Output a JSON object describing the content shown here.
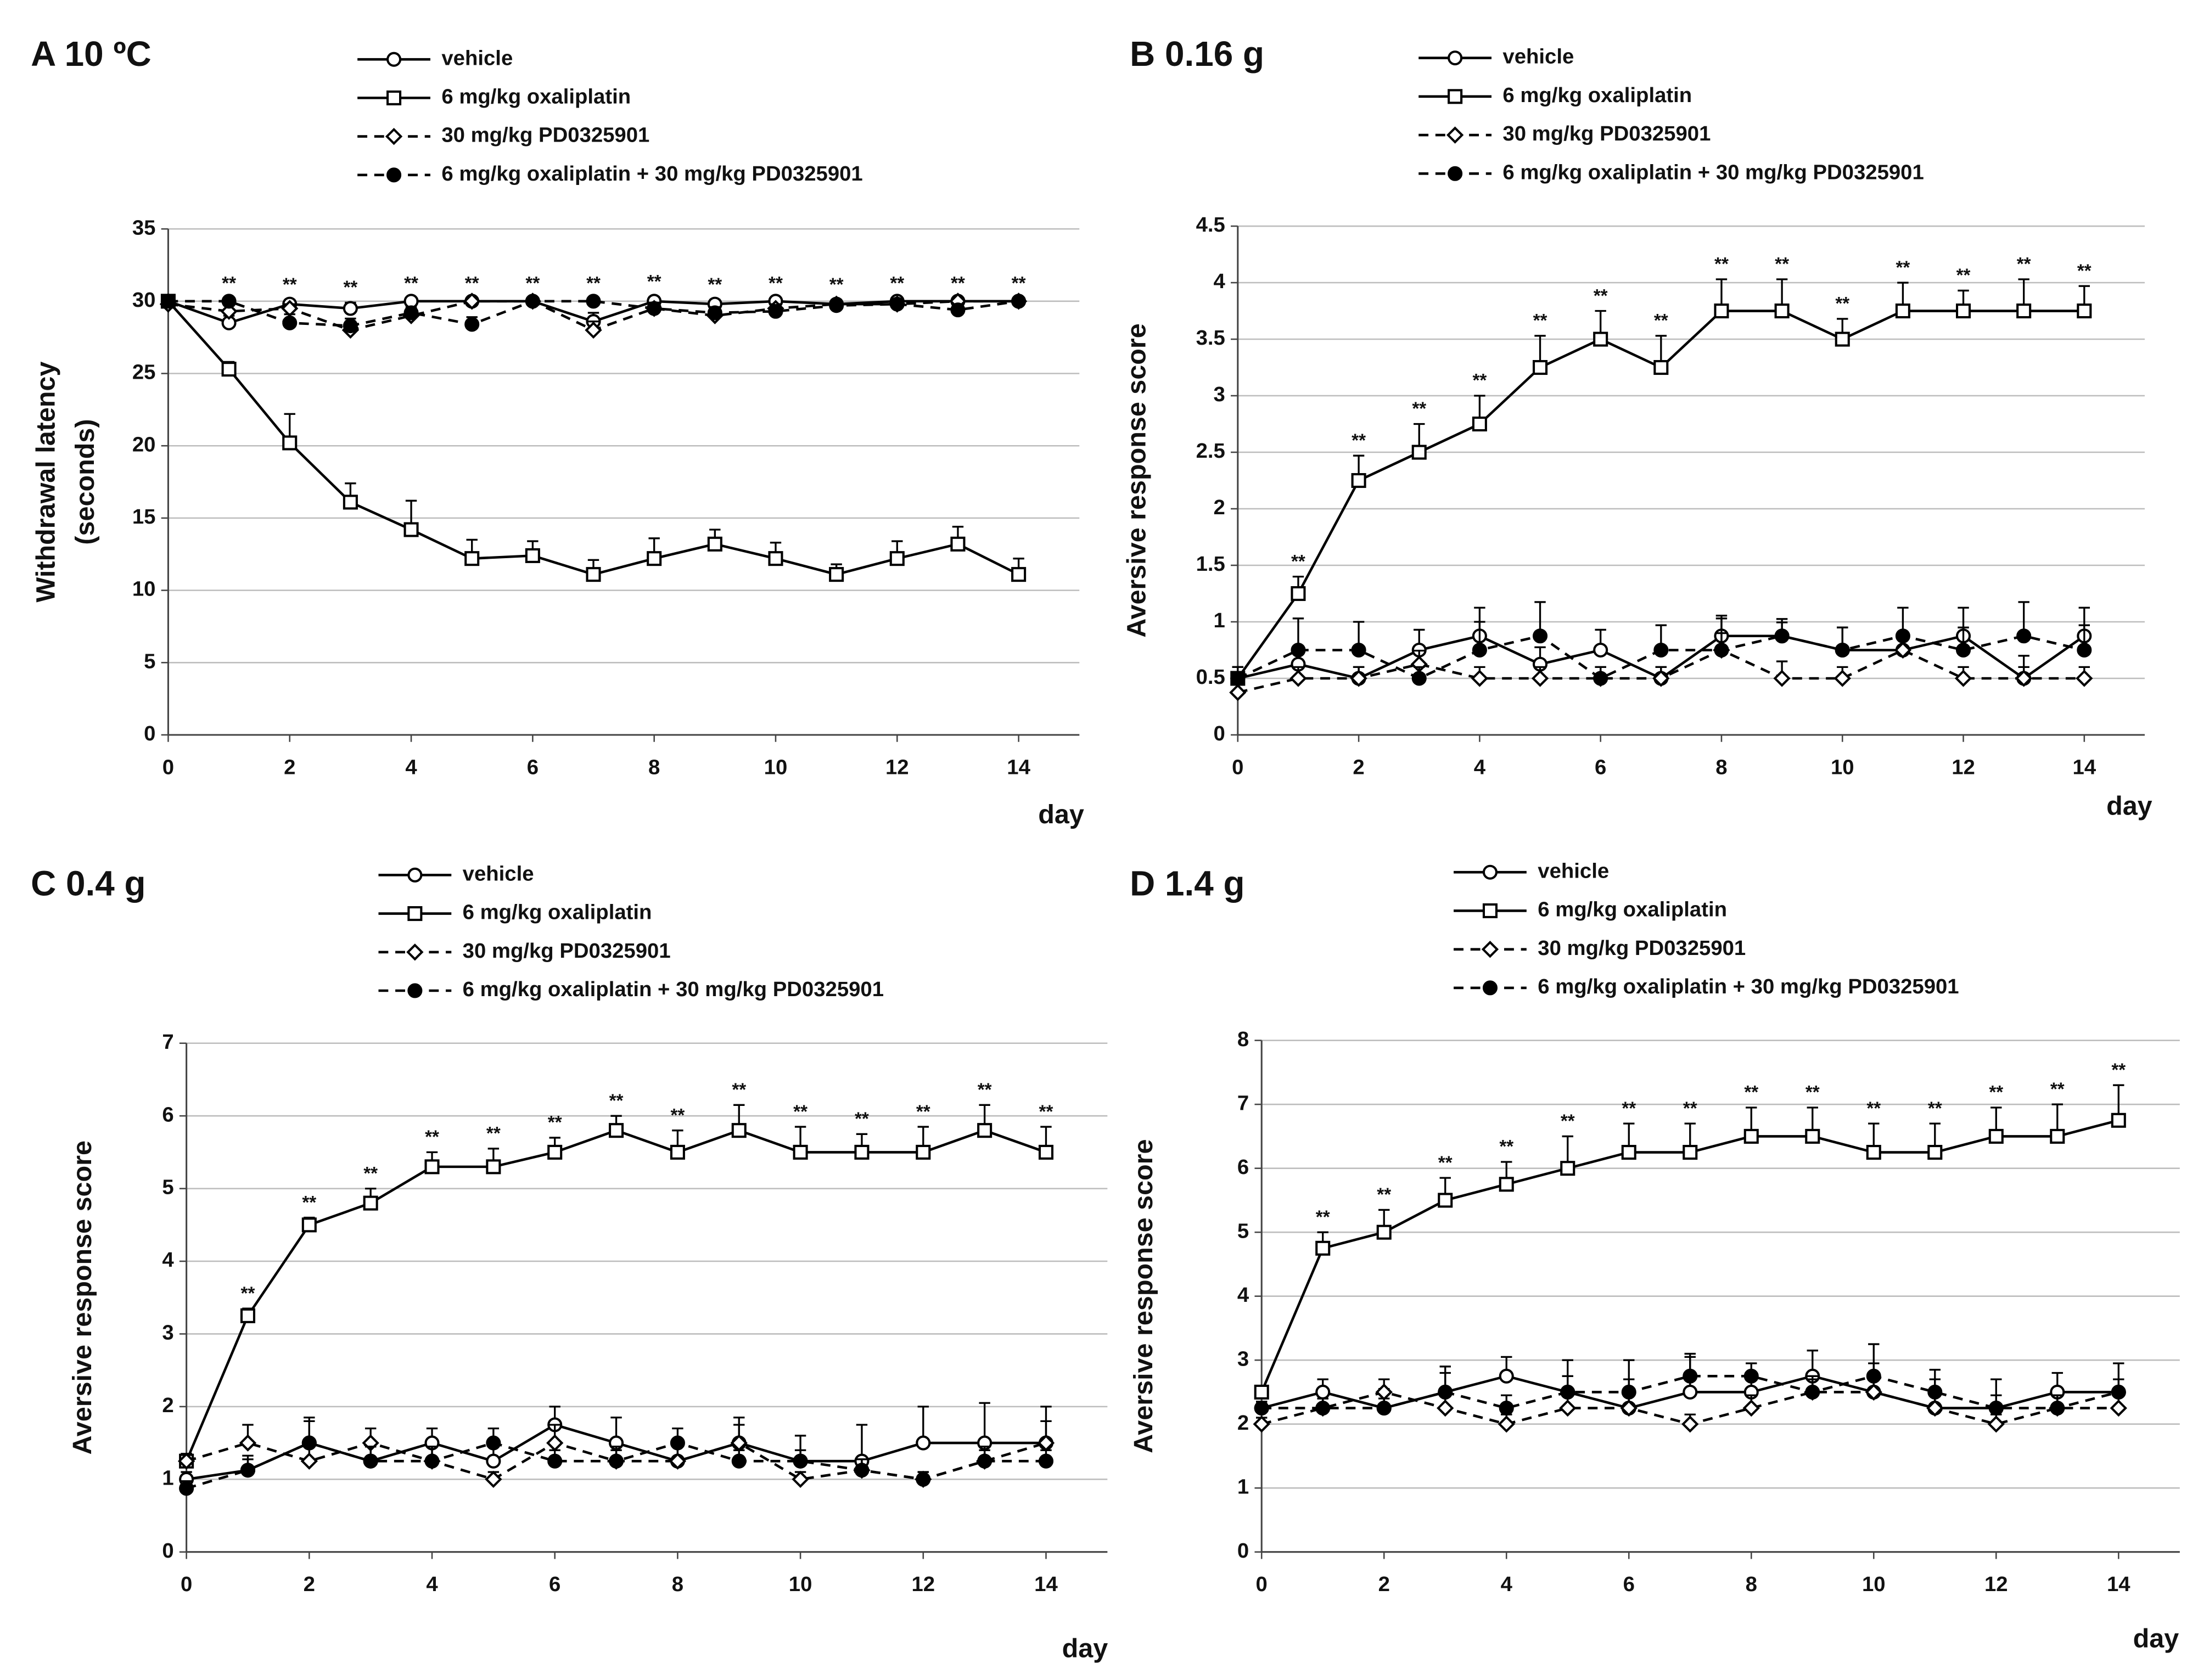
{
  "chart_data": [
    {
      "type": "line",
      "title": "A 10 ºC",
      "ylabel": [
        "Withdrawal latency",
        "(seconds)"
      ],
      "xlabel": "day",
      "x": [
        0,
        1,
        2,
        3,
        4,
        5,
        6,
        7,
        8,
        9,
        10,
        11,
        12,
        13,
        14
      ],
      "xlim": [
        0,
        15
      ],
      "xticks": [
        0,
        2,
        4,
        6,
        8,
        10,
        12,
        14
      ],
      "ylim": [
        0,
        35
      ],
      "yticks": [
        0,
        5,
        10,
        15,
        20,
        25,
        30,
        35
      ],
      "grid": true,
      "series": [
        {
          "name": "vehicle",
          "color": "#000000",
          "marker": "circle-open",
          "dashed": false,
          "values": [
            30,
            28.5,
            29.8,
            29.5,
            30,
            30,
            30,
            28.6,
            30,
            29.8,
            30,
            29.8,
            30,
            30,
            30
          ],
          "errors": [
            0.2,
            0.5,
            0.3,
            0.4,
            0.2,
            0.2,
            0.2,
            0.6,
            0.3,
            0.3,
            0.2,
            0.3,
            0.2,
            0.2,
            0.2
          ]
        },
        {
          "name": "6 mg/kg oxaliplatin",
          "color": "#000000",
          "marker": "square-open",
          "dashed": false,
          "values": [
            30,
            25.3,
            20.2,
            16.1,
            14.2,
            12.2,
            12.4,
            11.1,
            12.2,
            13.2,
            12.2,
            11.1,
            12.2,
            13.2,
            11.1
          ],
          "errors": [
            0.2,
            0.5,
            2,
            1.3,
            2,
            1.3,
            1,
            1,
            1.4,
            1,
            1.1,
            0.7,
            1.2,
            1.2,
            1.1
          ]
        },
        {
          "name": "30 mg/kg PD0325901",
          "color": "#000000",
          "marker": "diamond-open",
          "dashed": true,
          "values": [
            29.8,
            29.3,
            29.5,
            28,
            29,
            30,
            30,
            28,
            29.5,
            29,
            29.5,
            29.8,
            29.8,
            30,
            30
          ],
          "errors": [
            0.2,
            0.4,
            0.3,
            0.6,
            0.5,
            0.2,
            0.2,
            0.6,
            0.4,
            0.4,
            0.3,
            0.2,
            0.2,
            0.2,
            0.2
          ]
        },
        {
          "name": "6 mg/kg oxaliplatin + 30 mg/kg PD0325901",
          "color": "#000000",
          "marker": "circle-filled",
          "dashed": true,
          "values": [
            30,
            30,
            28.5,
            28.3,
            29.2,
            28.4,
            30,
            30,
            29.5,
            29.2,
            29.3,
            29.7,
            29.8,
            29.4,
            30
          ],
          "errors": [
            0.2,
            0.2,
            0.6,
            0.5,
            0.4,
            0.5,
            0.2,
            0.2,
            0.4,
            0.4,
            0.4,
            0.3,
            0.2,
            0.4,
            0.2
          ]
        }
      ],
      "annotations": [
        {
          "x": 1,
          "text": "**"
        },
        {
          "x": 2,
          "text": "**"
        },
        {
          "x": 3,
          "text": "**"
        },
        {
          "x": 4,
          "text": "**"
        },
        {
          "x": 5,
          "text": "**"
        },
        {
          "x": 6,
          "text": "**"
        },
        {
          "x": 7,
          "text": "**"
        },
        {
          "x": 8,
          "text": "**"
        },
        {
          "x": 9,
          "text": "**"
        },
        {
          "x": 10,
          "text": "**"
        },
        {
          "x": 11,
          "text": "**"
        },
        {
          "x": 12,
          "text": "**"
        },
        {
          "x": 13,
          "text": "**"
        },
        {
          "x": 14,
          "text": "**"
        }
      ]
    },
    {
      "type": "line",
      "title": "B  0.16 g",
      "ylabel": [
        "Aversive response score"
      ],
      "xlabel": "day",
      "x": [
        0,
        1,
        2,
        3,
        4,
        5,
        6,
        7,
        8,
        9,
        10,
        11,
        12,
        13,
        14
      ],
      "xlim": [
        0,
        15
      ],
      "xticks": [
        0,
        2,
        4,
        6,
        8,
        10,
        12,
        14
      ],
      "ylim": [
        0,
        4.5
      ],
      "yticks": [
        0,
        0.5,
        1,
        1.5,
        2,
        2.5,
        3,
        3.5,
        4,
        4.5
      ],
      "grid": true,
      "series": [
        {
          "name": "vehicle",
          "color": "#000000",
          "marker": "circle-open",
          "dashed": false,
          "values": [
            0.5,
            0.625,
            0.5,
            0.75,
            0.875,
            0.625,
            0.75,
            0.5,
            0.875,
            0.875,
            0.75,
            0.75,
            0.875,
            0.5,
            0.875
          ],
          "errors": [
            0.1,
            0.15,
            0.1,
            0.18,
            0.25,
            0.15,
            0.18,
            0.1,
            0.18,
            0.12,
            0.2,
            0.15,
            0.25,
            0.2,
            0.25
          ]
        },
        {
          "name": "6 mg/kg oxaliplatin",
          "color": "#000000",
          "marker": "square-open",
          "dashed": false,
          "values": [
            0.5,
            1.25,
            2.25,
            2.5,
            2.75,
            3.25,
            3.5,
            3.25,
            3.75,
            3.75,
            3.5,
            3.75,
            3.75,
            3.75,
            3.75
          ],
          "errors": [
            0.1,
            0.15,
            0.22,
            0.25,
            0.25,
            0.28,
            0.25,
            0.28,
            0.28,
            0.28,
            0.18,
            0.25,
            0.18,
            0.28,
            0.22
          ]
        },
        {
          "name": "30 mg/kg PD0325901",
          "color": "#000000",
          "marker": "diamond-open",
          "dashed": true,
          "values": [
            0.375,
            0.5,
            0.5,
            0.625,
            0.5,
            0.5,
            0.5,
            0.5,
            0.75,
            0.5,
            0.5,
            0.75,
            0.5,
            0.5,
            0.5
          ],
          "errors": [
            0.1,
            0.1,
            0.1,
            0.12,
            0.1,
            0.1,
            0.1,
            0.1,
            0.15,
            0.15,
            0.1,
            0.15,
            0.1,
            0.1,
            0.1
          ]
        },
        {
          "name": "6 mg/kg oxaliplatin + 30 mg/kg PD0325901",
          "color": "#000000",
          "marker": "circle-filled",
          "dashed": true,
          "values": [
            0.5,
            0.75,
            0.75,
            0.5,
            0.75,
            0.875,
            0.5,
            0.75,
            0.75,
            0.875,
            0.75,
            0.875,
            0.75,
            0.875,
            0.75
          ],
          "errors": [
            0.1,
            0.28,
            0.25,
            0.1,
            0.25,
            0.3,
            0.1,
            0.22,
            0.28,
            0.15,
            0.2,
            0.25,
            0.2,
            0.3,
            0.22
          ]
        }
      ],
      "annotations": [
        {
          "x": 1,
          "text": "**"
        },
        {
          "x": 2,
          "text": "**"
        },
        {
          "x": 3,
          "text": "**"
        },
        {
          "x": 4,
          "text": "**"
        },
        {
          "x": 5,
          "text": "**"
        },
        {
          "x": 6,
          "text": "**"
        },
        {
          "x": 7,
          "text": "**"
        },
        {
          "x": 8,
          "text": "**"
        },
        {
          "x": 9,
          "text": "**"
        },
        {
          "x": 10,
          "text": "**"
        },
        {
          "x": 11,
          "text": "**"
        },
        {
          "x": 12,
          "text": "**"
        },
        {
          "x": 13,
          "text": "**"
        },
        {
          "x": 14,
          "text": "**"
        }
      ]
    },
    {
      "type": "line",
      "title": "C 0.4 g",
      "ylabel": [
        "Aversive response score"
      ],
      "xlabel": "day",
      "x": [
        0,
        1,
        2,
        3,
        4,
        5,
        6,
        7,
        8,
        9,
        10,
        11,
        12,
        13,
        14
      ],
      "xlim": [
        0,
        15
      ],
      "xticks": [
        0,
        2,
        4,
        6,
        8,
        10,
        12,
        14
      ],
      "ylim": [
        0,
        7
      ],
      "yticks": [
        0,
        1,
        2,
        3,
        4,
        5,
        6,
        7
      ],
      "grid": true,
      "series": [
        {
          "name": "vehicle",
          "color": "#000000",
          "marker": "circle-open",
          "dashed": false,
          "values": [
            1,
            1.125,
            1.5,
            1.25,
            1.5,
            1.25,
            1.75,
            1.5,
            1.25,
            1.5,
            1.25,
            1.25,
            1.5,
            1.5,
            1.5
          ],
          "errors": [
            0.1,
            0.2,
            0.3,
            0.2,
            0.2,
            0.2,
            0.25,
            0.35,
            0.25,
            0.35,
            0.35,
            0.5,
            0.5,
            0.55,
            0.5
          ]
        },
        {
          "name": "6 mg/kg oxaliplatin",
          "color": "#000000",
          "marker": "square-open",
          "dashed": false,
          "values": [
            1.25,
            3.25,
            4.5,
            4.8,
            5.3,
            5.3,
            5.5,
            5.8,
            5.5,
            5.8,
            5.5,
            5.5,
            5.5,
            5.8,
            5.5
          ],
          "errors": [
            0.1,
            0.1,
            0.1,
            0.2,
            0.2,
            0.25,
            0.2,
            0.2,
            0.3,
            0.35,
            0.35,
            0.25,
            0.35,
            0.35,
            0.35
          ]
        },
        {
          "name": "30 mg/kg PD0325901",
          "color": "#000000",
          "marker": "diamond-open",
          "dashed": true,
          "values": [
            1.25,
            1.5,
            1.25,
            1.5,
            1.25,
            1,
            1.5,
            1.25,
            1.25,
            1.5,
            1,
            1.125,
            1,
            1.25,
            1.5
          ],
          "errors": [
            0.1,
            0.25,
            0.2,
            0.2,
            0.2,
            0.1,
            0.25,
            0.2,
            0.2,
            0.25,
            0.1,
            0.15,
            0.1,
            0.2,
            0.3
          ]
        },
        {
          "name": "6 mg/kg oxaliplatin + 30 mg/kg PD0325901",
          "color": "#000000",
          "marker": "circle-filled",
          "dashed": true,
          "values": [
            0.875,
            1.125,
            1.5,
            1.25,
            1.25,
            1.5,
            1.25,
            1.25,
            1.5,
            1.25,
            1.25,
            1.125,
            1,
            1.25,
            1.25
          ],
          "errors": [
            0.1,
            0.15,
            0.35,
            0.2,
            0.2,
            0.2,
            0.15,
            0.15,
            0.2,
            0.15,
            0.15,
            0.15,
            0.1,
            0.15,
            0.15
          ]
        }
      ],
      "annotations": [
        {
          "x": 1,
          "text": "**"
        },
        {
          "x": 2,
          "text": "**"
        },
        {
          "x": 3,
          "text": "**"
        },
        {
          "x": 4,
          "text": "**"
        },
        {
          "x": 5,
          "text": "**"
        },
        {
          "x": 6,
          "text": "**"
        },
        {
          "x": 7,
          "text": "**"
        },
        {
          "x": 8,
          "text": "**"
        },
        {
          "x": 9,
          "text": "**"
        },
        {
          "x": 10,
          "text": "**"
        },
        {
          "x": 11,
          "text": "**"
        },
        {
          "x": 12,
          "text": "**"
        },
        {
          "x": 13,
          "text": "**"
        },
        {
          "x": 14,
          "text": "**"
        }
      ]
    },
    {
      "type": "line",
      "title": "D  1.4 g",
      "ylabel": [
        "Aversive response score"
      ],
      "xlabel": "day",
      "x": [
        0,
        1,
        2,
        3,
        4,
        5,
        6,
        7,
        8,
        9,
        10,
        11,
        12,
        13,
        14
      ],
      "xlim": [
        0,
        15
      ],
      "xticks": [
        0,
        2,
        4,
        6,
        8,
        10,
        12,
        14
      ],
      "ylim": [
        0,
        8
      ],
      "yticks": [
        0,
        1,
        2,
        3,
        4,
        5,
        6,
        7,
        8
      ],
      "grid": true,
      "series": [
        {
          "name": "vehicle",
          "color": "#000000",
          "marker": "circle-open",
          "dashed": false,
          "values": [
            2.25,
            2.5,
            2.25,
            2.5,
            2.75,
            2.5,
            2.25,
            2.5,
            2.5,
            2.75,
            2.5,
            2.25,
            2.25,
            2.5,
            2.5
          ],
          "errors": [
            0.1,
            0.2,
            0.3,
            0.3,
            0.3,
            0.5,
            0.75,
            0.6,
            0.3,
            0.4,
            0.75,
            0.6,
            0.45,
            0.3,
            0.45
          ]
        },
        {
          "name": "6 mg/kg oxaliplatin",
          "color": "#000000",
          "marker": "square-open",
          "dashed": false,
          "values": [
            2.5,
            4.75,
            5,
            5.5,
            5.75,
            6,
            6.25,
            6.25,
            6.5,
            6.5,
            6.25,
            6.25,
            6.5,
            6.5,
            6.75
          ],
          "errors": [
            0.1,
            0.25,
            0.35,
            0.35,
            0.35,
            0.5,
            0.45,
            0.45,
            0.45,
            0.45,
            0.45,
            0.45,
            0.45,
            0.5,
            0.55
          ]
        },
        {
          "name": "30 mg/kg PD0325901",
          "color": "#000000",
          "marker": "diamond-open",
          "dashed": true,
          "values": [
            2,
            2.25,
            2.5,
            2.25,
            2,
            2.25,
            2.25,
            2,
            2.25,
            2.5,
            2.5,
            2.25,
            2,
            2.25,
            2.25
          ],
          "errors": [
            0.1,
            0.15,
            0.2,
            0.2,
            0.15,
            0.2,
            0.2,
            0.15,
            0.2,
            0.25,
            0.2,
            0.2,
            0.15,
            0.2,
            0.2
          ]
        },
        {
          "name": "6 mg/kg oxaliplatin + 30 mg/kg PD0325901",
          "color": "#000000",
          "marker": "circle-filled",
          "dashed": true,
          "values": [
            2.25,
            2.25,
            2.25,
            2.5,
            2.25,
            2.5,
            2.5,
            2.75,
            2.75,
            2.5,
            2.75,
            2.5,
            2.25,
            2.25,
            2.5
          ],
          "errors": [
            0.1,
            0.15,
            0.15,
            0.4,
            0.2,
            0.25,
            0.2,
            0.3,
            0.2,
            0.2,
            0.2,
            0.2,
            0.2,
            0.2,
            0.2
          ]
        }
      ],
      "annotations": [
        {
          "x": 1,
          "text": "**"
        },
        {
          "x": 2,
          "text": "**"
        },
        {
          "x": 3,
          "text": "**"
        },
        {
          "x": 4,
          "text": "**"
        },
        {
          "x": 5,
          "text": "**"
        },
        {
          "x": 6,
          "text": "**"
        },
        {
          "x": 7,
          "text": "**"
        },
        {
          "x": 8,
          "text": "**"
        },
        {
          "x": 9,
          "text": "**"
        },
        {
          "x": 10,
          "text": "**"
        },
        {
          "x": 11,
          "text": "**"
        },
        {
          "x": 12,
          "text": "**"
        },
        {
          "x": 13,
          "text": "**"
        },
        {
          "x": 14,
          "text": "**"
        }
      ]
    }
  ]
}
